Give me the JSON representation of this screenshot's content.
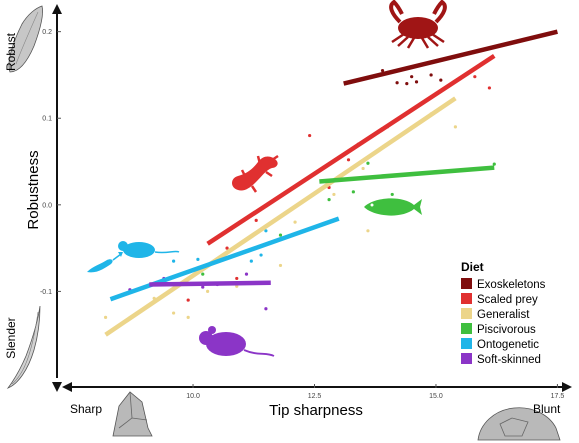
{
  "chart_data": {
    "type": "scatter",
    "xlabel": "Tip sharpness",
    "ylabel": "Robustness",
    "x_end_labels": {
      "low": "Sharp",
      "high": "Blunt"
    },
    "y_end_labels": {
      "low": "Slender",
      "high": "Robust"
    },
    "xlim": [
      7.2,
      17.8
    ],
    "ylim": [
      -0.2,
      0.225
    ],
    "x_ticks": [
      10.0,
      12.5,
      15.0,
      17.5
    ],
    "x_tick_labels": [
      "10.0",
      "12.5",
      "15.0",
      "17.5"
    ],
    "y_ticks": [
      -0.1,
      0.0,
      0.1,
      0.2
    ],
    "y_tick_labels": [
      "-0.1",
      "0.0",
      "0.1",
      "0.2"
    ],
    "grid": false,
    "legend": {
      "title": "Diet",
      "position": "bottom-right"
    },
    "series": [
      {
        "name": "Exoskeletons",
        "color": "#7f0d0d",
        "icon": "crab-icon",
        "fit": {
          "x": [
            13.1,
            17.5
          ],
          "y": [
            0.14,
            0.2
          ]
        },
        "points": [
          [
            14.2,
            0.141
          ],
          [
            14.5,
            0.148
          ],
          [
            14.4,
            0.14
          ],
          [
            14.9,
            0.15
          ],
          [
            15.1,
            0.144
          ],
          [
            13.9,
            0.155
          ],
          [
            14.6,
            0.142
          ]
        ]
      },
      {
        "name": "Scaled prey",
        "color": "#e03030",
        "icon": "lizard-icon",
        "fit": {
          "x": [
            10.3,
            16.2
          ],
          "y": [
            -0.045,
            0.172
          ]
        },
        "points": [
          [
            15.8,
            0.148
          ],
          [
            16.1,
            0.135
          ],
          [
            13.2,
            0.052
          ],
          [
            12.4,
            0.08
          ],
          [
            13.4,
            0.07
          ],
          [
            10.7,
            -0.05
          ],
          [
            11.3,
            -0.018
          ],
          [
            10.9,
            -0.085
          ],
          [
            9.9,
            -0.11
          ],
          [
            14.0,
            0.09
          ],
          [
            12.8,
            0.02
          ]
        ]
      },
      {
        "name": "Generalist",
        "color": "#ecd58a",
        "icon": null,
        "fit": {
          "x": [
            8.2,
            15.4
          ],
          "y": [
            -0.15,
            0.123
          ]
        },
        "points": [
          [
            15.4,
            0.09
          ],
          [
            14.9,
            0.105
          ],
          [
            13.5,
            0.042
          ],
          [
            13.6,
            -0.03
          ],
          [
            12.1,
            -0.02
          ],
          [
            11.8,
            -0.07
          ],
          [
            10.9,
            -0.094
          ],
          [
            9.6,
            -0.125
          ],
          [
            9.2,
            -0.108
          ],
          [
            8.2,
            -0.13
          ],
          [
            12.9,
            0.012
          ],
          [
            10.3,
            -0.1
          ],
          [
            9.9,
            -0.13
          ]
        ]
      },
      {
        "name": "Piscivorous",
        "color": "#3fbf3f",
        "icon": "fish-icon",
        "fit": {
          "x": [
            12.6,
            16.2
          ],
          "y": [
            0.027,
            0.043
          ]
        },
        "points": [
          [
            16.2,
            0.047
          ],
          [
            13.6,
            0.048
          ],
          [
            14.1,
            0.012
          ],
          [
            12.8,
            0.006
          ],
          [
            13.3,
            0.015
          ],
          [
            11.8,
            -0.035
          ],
          [
            10.2,
            -0.08
          ]
        ]
      },
      {
        "name": "Ontogenetic",
        "color": "#1fb5e8",
        "icon": "mouse-and-lizard-icon",
        "fit": {
          "x": [
            8.3,
            13.0
          ],
          "y": [
            -0.109,
            -0.016
          ]
        },
        "points": [
          [
            11.4,
            -0.058
          ],
          [
            11.2,
            -0.065
          ],
          [
            11.5,
            -0.03
          ],
          [
            9.6,
            -0.065
          ],
          [
            10.1,
            -0.063
          ]
        ]
      },
      {
        "name": "Soft-skinned",
        "color": "#8b35c7",
        "icon": "mouse-icon",
        "fit": {
          "x": [
            9.1,
            11.6
          ],
          "y": [
            -0.092,
            -0.09
          ]
        },
        "points": [
          [
            9.4,
            -0.085
          ],
          [
            11.5,
            -0.12
          ],
          [
            11.1,
            -0.08
          ],
          [
            10.5,
            -0.092
          ],
          [
            8.7,
            -0.098
          ],
          [
            10.2,
            -0.095
          ]
        ]
      }
    ]
  }
}
